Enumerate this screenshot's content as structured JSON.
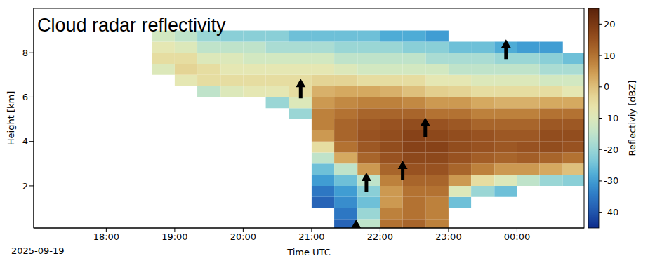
{
  "chart_data": {
    "type": "heatmap",
    "title": "Cloud radar reflectivity",
    "x_label": "Time UTC",
    "y_label": "Height [km]",
    "annotation": "2025-09-19",
    "xlim": [
      16.94,
      24.98
    ],
    "xticks": [
      {
        "value": 18,
        "label": "18:00"
      },
      {
        "value": 19,
        "label": "19:00"
      },
      {
        "value": 20,
        "label": "20:00"
      },
      {
        "value": 21,
        "label": "21:00"
      },
      {
        "value": 22,
        "label": "22:00"
      },
      {
        "value": 23,
        "label": "23:00"
      },
      {
        "value": 24,
        "label": "00:00"
      }
    ],
    "ylim": [
      0.1,
      10
    ],
    "yticks": [
      2,
      4,
      6,
      8
    ],
    "x_edges": [
      18.67,
      19,
      19.33,
      19.67,
      20,
      20.33,
      20.67,
      21,
      21.33,
      21.67,
      22,
      22.33,
      22.67,
      23,
      23.33,
      23.67,
      24,
      24.33,
      24.67,
      25
    ],
    "y_edges": [
      0.1,
      0.5,
      1,
      1.5,
      2,
      2.5,
      3,
      3.5,
      4,
      4.5,
      5,
      5.5,
      6,
      6.5,
      7,
      7.5,
      8,
      8.5,
      9
    ],
    "z": [
      [
        null,
        null,
        null,
        null,
        null,
        null,
        null,
        null,
        -38,
        -15,
        10,
        12,
        8,
        null,
        null,
        null,
        null,
        null,
        null
      ],
      [
        null,
        null,
        null,
        null,
        null,
        null,
        null,
        null,
        -35,
        -20,
        8,
        10,
        8,
        null,
        null,
        null,
        null,
        null,
        null
      ],
      [
        null,
        null,
        null,
        null,
        null,
        null,
        null,
        -38,
        -32,
        -25,
        5,
        10,
        8,
        -25,
        null,
        null,
        null,
        null,
        null
      ],
      [
        null,
        null,
        null,
        null,
        null,
        null,
        null,
        -35,
        -30,
        -22,
        5,
        10,
        10,
        -10,
        -20,
        -25,
        null,
        null,
        null
      ],
      [
        null,
        null,
        null,
        null,
        null,
        null,
        null,
        -30,
        -25,
        -15,
        8,
        12,
        12,
        5,
        -5,
        -10,
        -15,
        -20,
        -22
      ],
      [
        null,
        null,
        null,
        null,
        null,
        null,
        null,
        -25,
        -15,
        5,
        12,
        15,
        15,
        12,
        8,
        5,
        5,
        3,
        0
      ],
      [
        null,
        null,
        null,
        null,
        null,
        null,
        null,
        -15,
        3,
        12,
        15,
        17,
        17,
        15,
        13,
        12,
        13,
        12,
        10
      ],
      [
        null,
        null,
        null,
        null,
        null,
        null,
        null,
        -5,
        10,
        14,
        16,
        18,
        18,
        16,
        15,
        14,
        15,
        16,
        15
      ],
      [
        null,
        null,
        null,
        null,
        null,
        null,
        null,
        5,
        12,
        15,
        16,
        18,
        17,
        16,
        15,
        14,
        14,
        16,
        16
      ],
      [
        null,
        null,
        null,
        null,
        null,
        null,
        null,
        8,
        12,
        14,
        15,
        16,
        15,
        14,
        12,
        12,
        12,
        14,
        14
      ],
      [
        null,
        null,
        null,
        null,
        null,
        null,
        -20,
        8,
        10,
        12,
        12,
        12,
        10,
        10,
        8,
        8,
        8,
        10,
        10
      ],
      [
        null,
        null,
        null,
        null,
        null,
        -20,
        -10,
        5,
        7,
        8,
        8,
        7,
        5,
        5,
        3,
        2,
        2,
        3,
        3
      ],
      [
        null,
        null,
        -15,
        -10,
        -8,
        -8,
        -5,
        2,
        3,
        3,
        2,
        0,
        -2,
        -3,
        -5,
        -5,
        -5,
        -5,
        -8
      ],
      [
        null,
        -8,
        -5,
        -5,
        -5,
        -5,
        -5,
        -3,
        -3,
        -5,
        -5,
        -5,
        -8,
        -8,
        -10,
        -10,
        -10,
        -12,
        -12
      ],
      [
        -10,
        -3,
        -5,
        -8,
        -8,
        -8,
        -8,
        -8,
        -10,
        -12,
        -12,
        -12,
        -12,
        -15,
        -15,
        -15,
        -15,
        -18,
        -18
      ],
      [
        -5,
        -5,
        -10,
        -10,
        -12,
        -12,
        -12,
        -12,
        -15,
        -15,
        -15,
        -15,
        -18,
        -18,
        -18,
        -20,
        -20,
        -22,
        -25
      ],
      [
        -8,
        -10,
        -15,
        -15,
        -15,
        -18,
        -18,
        -18,
        -20,
        -20,
        -20,
        -22,
        -22,
        -25,
        -25,
        -28,
        -30,
        -30,
        null
      ],
      [
        -12,
        -15,
        -20,
        -22,
        -22,
        -22,
        -25,
        -25,
        -25,
        -25,
        -28,
        -28,
        -30,
        null,
        null,
        null,
        null,
        null,
        null
      ]
    ],
    "colorbar": {
      "label": "Reflectiviy [dBZ]",
      "range": [
        -45,
        25
      ],
      "ticks": [
        -40,
        -30,
        -20,
        -10,
        0,
        10,
        20
      ]
    },
    "arrows": {
      "x": [
        20.84,
        21.65,
        21.8,
        22.33,
        22.66,
        23.84
      ],
      "y": [
        6.83,
        0.48,
        2.6,
        3.14,
        5.08,
        8.6
      ]
    }
  }
}
